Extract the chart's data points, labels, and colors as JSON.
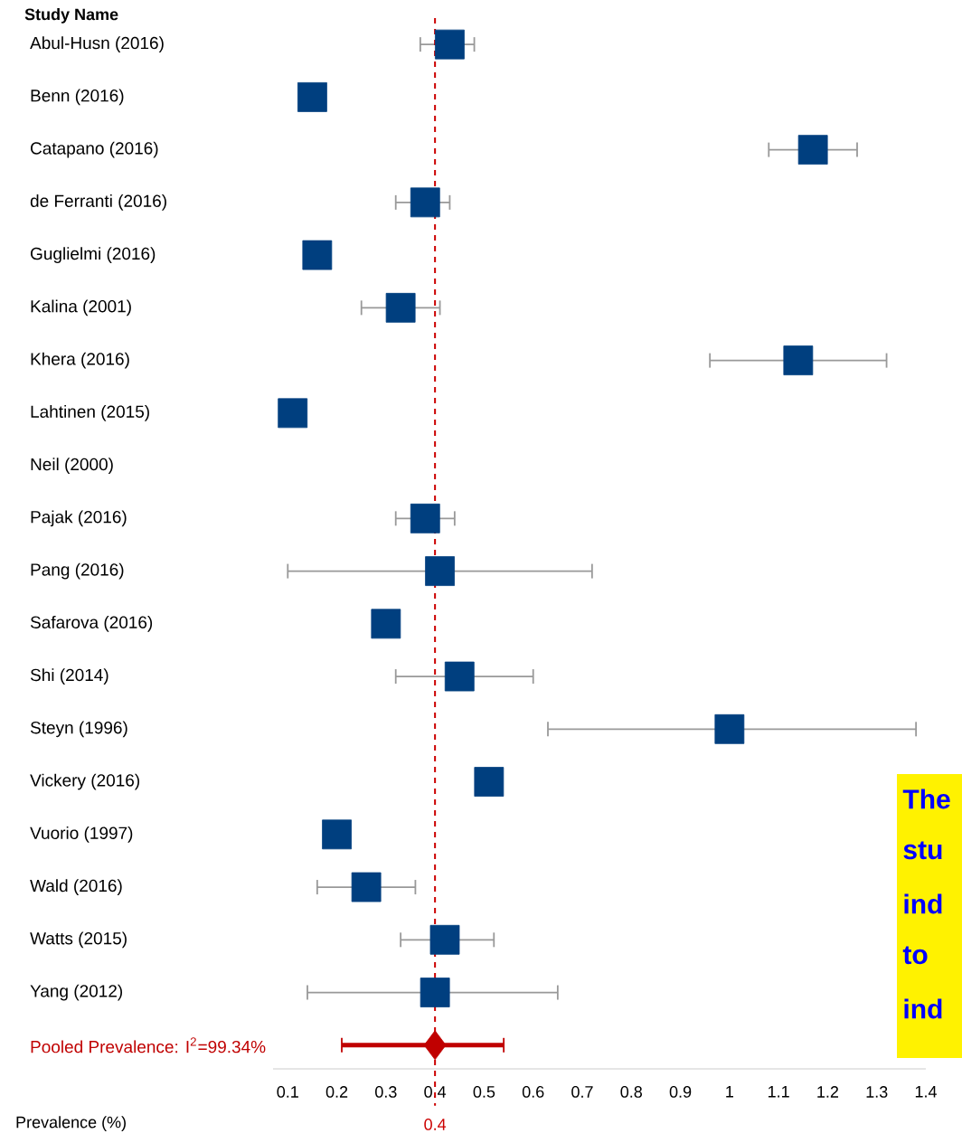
{
  "chart_data": {
    "type": "scatter",
    "orientation": "horizontal",
    "ylabel": "Study Name",
    "xlabel": "Prevalence (%)",
    "categories": [
      "Abul-Husn (2016)",
      "Benn (2016)",
      "Catapano (2016)",
      "de Ferranti (2016)",
      "Guglielmi (2016)",
      "Kalina (2001)",
      "Khera (2016)",
      "Lahtinen (2015)",
      "Neil (2000)",
      "Pajak (2016)",
      "Pang (2016)",
      "Safarova (2016)",
      "Shi (2014)",
      "Steyn (1996)",
      "Vickery (2016)",
      "Vuorio (1997)",
      "Wald (2016)",
      "Watts (2015)",
      "Yang (2012)",
      "Pooled Prevalence: I$^{2}$=99.34%"
    ],
    "series": [
      {
        "color": "#003f7f",
        "marker": "square",
        "values": [
          0.43,
          0.15,
          1.17,
          0.38,
          0.16,
          0.33,
          1.14,
          0.11,
          null,
          0.38,
          0.41,
          0.3,
          0.45,
          1.0,
          0.51,
          0.2,
          0.26,
          0.42,
          0.4,
          null
        ],
        "errors": [
          [
            0.37,
            0.48
          ],
          null,
          [
            1.08,
            1.26
          ],
          [
            0.32,
            0.43
          ],
          null,
          [
            0.25,
            0.41
          ],
          [
            0.96,
            1.32
          ],
          null,
          null,
          [
            0.32,
            0.44
          ],
          [
            0.1,
            0.72
          ],
          null,
          [
            0.32,
            0.6
          ],
          [
            0.63,
            1.38
          ],
          null,
          null,
          [
            0.16,
            0.36
          ],
          [
            0.33,
            0.52
          ],
          [
            0.14,
            0.65
          ],
          null
        ]
      },
      {
        "color": "#c00000",
        "marker": "diamond",
        "values": [
          null,
          null,
          null,
          null,
          null,
          null,
          null,
          null,
          null,
          null,
          null,
          null,
          null,
          null,
          null,
          null,
          null,
          null,
          null,
          0.4
        ],
        "errors": [
          null,
          null,
          null,
          null,
          null,
          null,
          null,
          null,
          null,
          null,
          null,
          null,
          null,
          null,
          null,
          null,
          null,
          null,
          null,
          [
            0.21,
            0.54
          ]
        ]
      }
    ],
    "xlim": [
      0.07,
      1.4
    ],
    "xticks": [
      0.1,
      0.2,
      0.3,
      0.4,
      0.5,
      0.6,
      0.7,
      0.8,
      0.9,
      1,
      1.1,
      1.2,
      1.3,
      1.4
    ],
    "ref_lines": [
      {
        "axis": "x",
        "value": 0.4,
        "label": "0.4",
        "color": "#cc0000",
        "line_style": "dashed"
      }
    ],
    "annotations": [
      "The",
      "stu",
      "ind",
      "to",
      "ind"
    ]
  }
}
